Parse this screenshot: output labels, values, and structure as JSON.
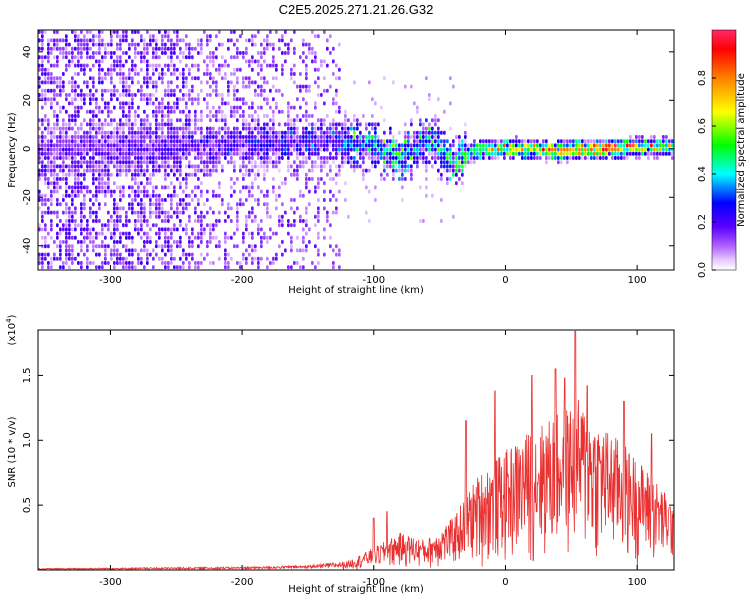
{
  "title": "C2E5.2025.271.21.26.G32",
  "chart_data": [
    {
      "type": "heatmap",
      "xlabel": "Height of straight line (km)",
      "ylabel": "Frequency (Hz)",
      "xlim": [
        -355,
        128
      ],
      "ylim": [
        -50,
        49
      ],
      "x_ticks": [
        -300,
        -200,
        -100,
        0,
        100
      ],
      "y_ticks": [
        -40,
        -20,
        0,
        20,
        40
      ],
      "colorbar": {
        "label": "Normalized spectral amplitude",
        "range": [
          0,
          1
        ],
        "ticks": [
          "0.0",
          "0.2",
          "0.4",
          "0.6",
          "0.8"
        ],
        "colors": [
          "#ffffff",
          "#e8ccff",
          "#8a2be2",
          "#5a00ff",
          "#0000ff",
          "#00ffff",
          "#00ff00",
          "#ffff00",
          "#ff8000",
          "#ff0000"
        ]
      },
      "ridge": [
        {
          "x": -355,
          "f": 0,
          "amp": 0.25
        },
        {
          "x": -250,
          "f": 2,
          "amp": 0.3
        },
        {
          "x": -180,
          "f": 3,
          "amp": 0.38
        },
        {
          "x": -130,
          "f": 4,
          "amp": 0.45
        },
        {
          "x": -100,
          "f": 2,
          "amp": 0.55
        },
        {
          "x": -80,
          "f": -3,
          "amp": 0.55
        },
        {
          "x": -60,
          "f": 5,
          "amp": 0.5
        },
        {
          "x": -40,
          "f": -5,
          "amp": 0.55
        },
        {
          "x": -25,
          "f": 0,
          "amp": 0.7
        },
        {
          "x": 0,
          "f": 1,
          "amp": 0.8
        },
        {
          "x": 40,
          "f": 0,
          "amp": 0.92
        },
        {
          "x": 80,
          "f": 1,
          "amp": 0.9
        },
        {
          "x": 128,
          "f": 2,
          "amp": 0.78
        }
      ],
      "noise_region_xmax": -125
    },
    {
      "type": "line",
      "xlabel": "Height of straight line (km)",
      "ylabel": "SNR (10 * v/v)",
      "y_multiplier": "(x10",
      "y_multiplier_exp": "4",
      "y_multiplier_close": ")",
      "xlim": [
        -355,
        128
      ],
      "ylim": [
        0,
        1.85
      ],
      "x_ticks": [
        -300,
        -200,
        -100,
        0,
        100
      ],
      "y_ticks": [
        "0.5",
        "1.0",
        "1.5"
      ],
      "color": "#e83030",
      "envelope": [
        {
          "x": -355,
          "y": 0.01
        },
        {
          "x": -200,
          "y": 0.02
        },
        {
          "x": -150,
          "y": 0.03
        },
        {
          "x": -120,
          "y": 0.06
        },
        {
          "x": -100,
          "y": 0.15
        },
        {
          "x": -80,
          "y": 0.25
        },
        {
          "x": -60,
          "y": 0.2
        },
        {
          "x": -40,
          "y": 0.35
        },
        {
          "x": -20,
          "y": 0.65
        },
        {
          "x": 0,
          "y": 0.8
        },
        {
          "x": 20,
          "y": 0.95
        },
        {
          "x": 40,
          "y": 1.05
        },
        {
          "x": 55,
          "y": 1.15
        },
        {
          "x": 70,
          "y": 1.0
        },
        {
          "x": 90,
          "y": 0.85
        },
        {
          "x": 110,
          "y": 0.65
        },
        {
          "x": 128,
          "y": 0.45
        }
      ],
      "peaks": [
        {
          "x": 53,
          "y": 1.84
        },
        {
          "x": 38,
          "y": 1.55
        },
        {
          "x": 20,
          "y": 1.5
        },
        {
          "x": 62,
          "y": 1.42
        },
        {
          "x": 45,
          "y": 1.48
        },
        {
          "x": -8,
          "y": 1.38
        },
        {
          "x": -30,
          "y": 1.15
        },
        {
          "x": 90,
          "y": 1.3
        },
        {
          "x": 111,
          "y": 1.05
        },
        {
          "x": -90,
          "y": 0.45
        },
        {
          "x": -100,
          "y": 0.4
        }
      ]
    }
  ]
}
